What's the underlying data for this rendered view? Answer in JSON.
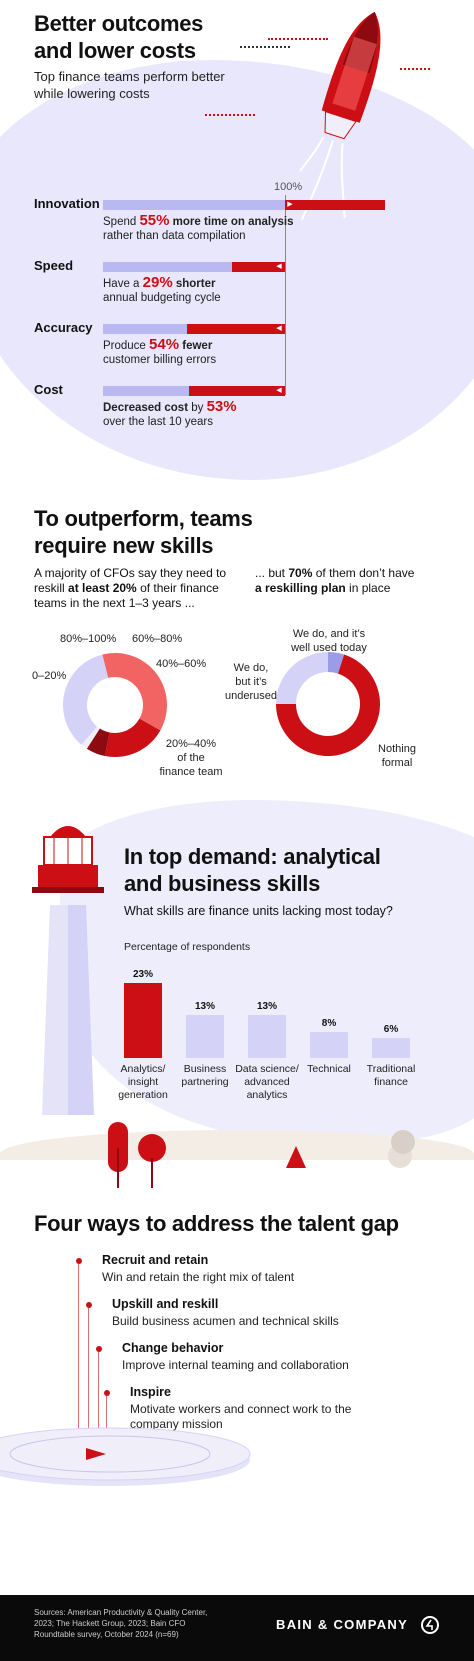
{
  "section1": {
    "title_line1": "Better outcomes",
    "title_line2": "and lower costs",
    "subtitle_line1": "Top finance teams perform better",
    "subtitle_line2": "while lowering costs",
    "ref_label": "100%",
    "metrics": [
      {
        "label": "Innovation",
        "desc_pre": "Spend ",
        "num": "55%",
        "desc_bold": " more time on analysis",
        "desc_line2": "rather than data compilation",
        "value_pct": 155
      },
      {
        "label": "Speed",
        "desc_pre": "Have a ",
        "num": "29%",
        "desc_bold": " shorter",
        "desc_line2": "annual budgeting cycle",
        "value_pct": 71
      },
      {
        "label": "Accuracy",
        "desc_pre": "Produce ",
        "num": "54%",
        "desc_bold": " fewer",
        "desc_line2": "customer billing errors",
        "value_pct": 46
      },
      {
        "label": "Cost",
        "desc_pre": "Decreased cost",
        "num": "53%",
        "desc_bold": " by ",
        "desc_line2": "over the last 10 years",
        "value_pct": 47
      }
    ]
  },
  "section2": {
    "title_line1": "To outperform, teams",
    "title_line2": "require new skills",
    "left_text_line1": "A majority of CFOs say they need to",
    "left_text_line2_pre": "reskill ",
    "left_text_line2_bold": "at least 20%",
    "left_text_line2_post": " of their finance",
    "left_text_line3": "teams in the next 1–3 years ...",
    "right_text_line1_pre": "... but ",
    "right_text_line1_bold": "70%",
    "right_text_line1_post": " of them don’t have",
    "right_text_line2_bold": "a reskilling plan",
    "right_text_line2_post": " in place",
    "donut1_labels": {
      "a": "80%–100%",
      "b": "60%–80%",
      "c": "40%–60%",
      "d": "20%–40%",
      "d2": "of the",
      "d3": "finance team",
      "e": "0–20%"
    },
    "donut2_labels": {
      "a1": "We do, and it’s",
      "a2": "well used today",
      "b1": "We do,",
      "b2": "but it’s",
      "b3": "underused",
      "c1": "Nothing",
      "c2": "formal"
    }
  },
  "section3": {
    "title_line1": "In top demand: analytical",
    "title_line2": "and business skills",
    "subtitle": "What skills are finance units lacking most today?",
    "axis_note": "Percentage of respondents"
  },
  "section4": {
    "title": "Four ways to address the talent gap",
    "ways": [
      {
        "title": "Recruit and retain",
        "desc1": "Win and retain the right mix of talent",
        "desc2": ""
      },
      {
        "title": "Upskill and reskill",
        "desc1": "Build business acumen and technical skills",
        "desc2": ""
      },
      {
        "title": "Change behavior",
        "desc1": "Improve internal teaming and collaboration",
        "desc2": ""
      },
      {
        "title": "Inspire",
        "desc1": "Motivate workers and connect work to the",
        "desc2": "company mission"
      }
    ]
  },
  "footer": {
    "sources_line1": "Sources: American Productivity & Quality Center,",
    "sources_line2": "2023; The Hackett Group, 2023; Bain CFO",
    "sources_line3": "Roundtable survey, October 2024 (n=69)",
    "brand": "BAIN & COMPANY"
  },
  "colors": {
    "red": "#cc0f14",
    "lavender": "#b9b8f0",
    "light_lavender": "#d4d3f7",
    "salmon": "#f26464",
    "dark_red": "#8c0a10"
  },
  "chart_data": [
    {
      "type": "bar",
      "title": "In top demand: analytical and business skills",
      "subtitle": "What skills are finance units lacking most today?",
      "ylabel": "Percentage of respondents",
      "categories": [
        "Analytics/ insight generation",
        "Business partnering",
        "Data science/ advanced analytics",
        "Technical",
        "Traditional finance"
      ],
      "category_lines": [
        [
          "Analytics/",
          "insight",
          "generation"
        ],
        [
          "Business",
          "partnering"
        ],
        [
          "Data science/",
          "advanced",
          "analytics"
        ],
        [
          "Technical"
        ],
        [
          "Traditional",
          "finance"
        ]
      ],
      "values": [
        23,
        13,
        13,
        8,
        6
      ],
      "value_labels": [
        "23%",
        "13%",
        "13%",
        "8%",
        "6%"
      ],
      "colors": [
        "#cc0f14",
        "#d4d3f7",
        "#d4d3f7",
        "#d4d3f7",
        "#d4d3f7"
      ],
      "ylim": [
        0,
        25
      ]
    },
    {
      "type": "pie",
      "labels": [
        "0–20%",
        "20%–40% of the finance team",
        "40%–60%",
        "60%–80%",
        "80%–100%"
      ],
      "values": [
        35,
        37,
        20,
        6,
        2
      ],
      "colors": [
        "#d4d3f7",
        "#f26464",
        "#cc0f14",
        "#8c0a10",
        "#f0eef9"
      ]
    },
    {
      "type": "pie",
      "labels": [
        "Nothing formal",
        "We do, but it’s underused",
        "We do, and it’s well used today"
      ],
      "values": [
        70,
        25,
        5
      ],
      "colors": [
        "#cc0f14",
        "#d4d3f7",
        "#9c9be8"
      ]
    }
  ]
}
